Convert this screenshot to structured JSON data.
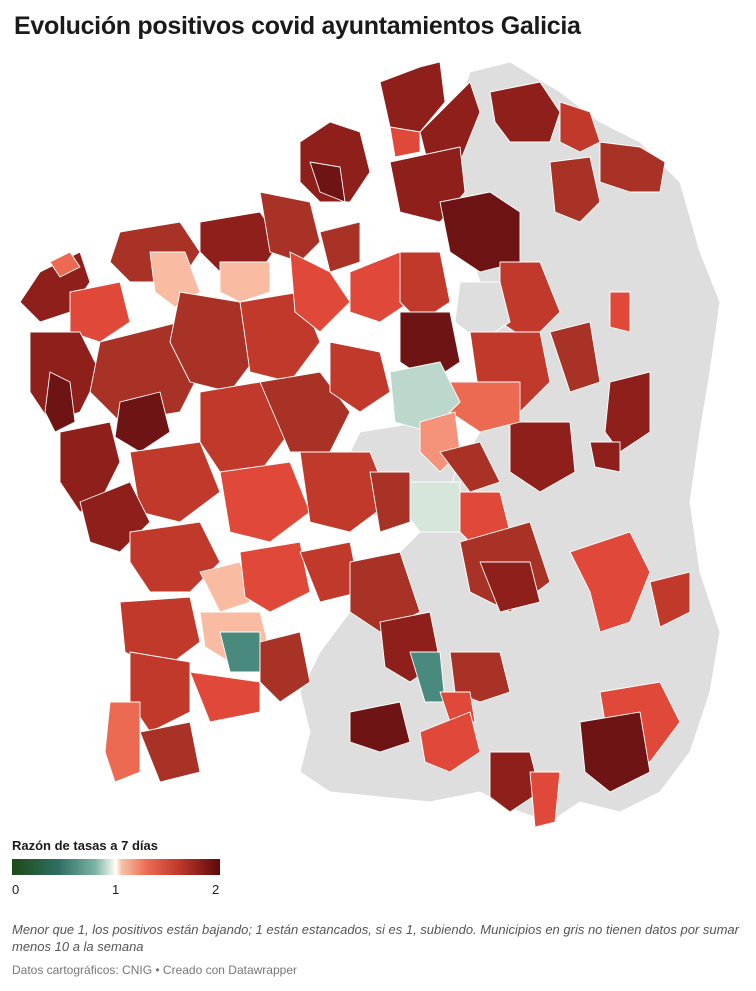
{
  "title": "Evolución positivos covid ayuntamientos Galicia",
  "legend": {
    "title": "Razón de tasas a 7 días",
    "ticks": [
      "0",
      "1",
      "2"
    ],
    "stops": [
      {
        "value": 0,
        "color": "#1e4a17"
      },
      {
        "value": 0.45,
        "color": "#2f6f63"
      },
      {
        "value": 0.8,
        "color": "#7cb3a3"
      },
      {
        "value": 0.97,
        "color": "#eef2ea"
      },
      {
        "value": 1.0,
        "color": "#ffffff"
      },
      {
        "value": 1.05,
        "color": "#f7c4a8"
      },
      {
        "value": 1.3,
        "color": "#ec6a52"
      },
      {
        "value": 1.6,
        "color": "#c0392b"
      },
      {
        "value": 2.0,
        "color": "#5c0a0a"
      }
    ],
    "no_data_color": "#dedede"
  },
  "note": "Menor que 1, los positivos están bajando; 1 están estancados, si es 1, subiendo. Municipios en gris no tienen datos por sumar menos 10 a la semana",
  "source": "Datos cartográficos: CNIG • Creado con Datawrapper",
  "palette": {
    "no_data": "#dedede",
    "dark_red": "#6e1414",
    "deep_red": "#8e1f1b",
    "red": "#a93226",
    "mid_red": "#c0392b",
    "bright_red": "#e0483a",
    "light_red": "#ec6a52",
    "salmon": "#f5937a",
    "peach": "#f9bba2",
    "light_teal": "#bcd8cc",
    "pale_teal": "#d7e6da",
    "teal": "#4a8a7e"
  }
}
